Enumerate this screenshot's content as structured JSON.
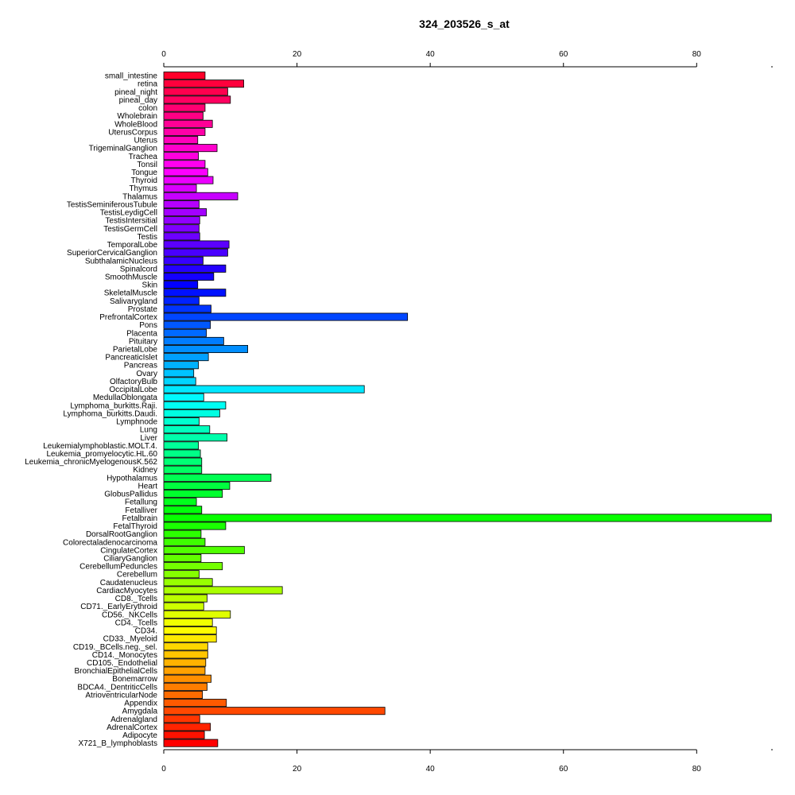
{
  "chart_data": {
    "type": "bar",
    "orientation": "horizontal",
    "title": "324_203526_s_at",
    "xlabel": "",
    "ylabel": "",
    "xlim": [
      0,
      91.3
    ],
    "xticks": [
      0,
      20,
      40,
      60,
      80
    ],
    "grid": false,
    "legend": "none",
    "categories": [
      "small_intestine",
      "retina",
      "pineal_night",
      "pineal_day",
      "colon",
      "Wholebrain",
      "WholeBlood",
      "UterusCorpus",
      "Uterus",
      "TrigeminalGanglion",
      "Trachea",
      "Tonsil",
      "Tongue",
      "Thyroid",
      "Thymus",
      "Thalamus",
      "TestisSeminiferousTubule",
      "TestisLeydigCell",
      "TestisIntersitial",
      "TestisGermCell",
      "Testis",
      "TemporalLobe",
      "SuperiorCervicalGanglion",
      "SubthalamicNucleus",
      "Spinalcord",
      "SmoothMuscle",
      "Skin",
      "SkeletalMuscle",
      "Salivarygland",
      "Prostate",
      "PrefrontalCortex",
      "Pons",
      "Placenta",
      "Pituitary",
      "ParietalLobe",
      "PancreaticIslet",
      "Pancreas",
      "Ovary",
      "OlfactoryBulb",
      "OccipitalLobe",
      "MedullaOblongata",
      "Lymphoma_burkitts.Raji.",
      "Lymphoma_burkitts.Daudi.",
      "Lymphnode",
      "Lung",
      "Liver",
      "Leukemialymphoblastic.MOLT.4.",
      "Leukemia_promyelocytic.HL.60",
      "Leukemia_chronicMyelogenousK.562",
      "Kidney",
      "Hypothalamus",
      "Heart",
      "GlobusPallidus",
      "Fetallung",
      "Fetalliver",
      "Fetalbrain",
      "FetalThyroid",
      "DorsalRootGanglion",
      "Colorectaladenocarcinoma",
      "CingulateCortex",
      "CiliaryGanglion",
      "CerebellumPeduncles",
      "Cerebellum",
      "Caudatenucleus",
      "CardiacMyocytes",
      "CD8._Tcells",
      "CD71._EarlyErythroid",
      "CD56._NKCells",
      "CD4._Tcells",
      "CD34.",
      "CD33._Myeloid",
      "CD19._BCells.neg._sel.",
      "CD14._Monocytes",
      "CD105._Endothelial",
      "BronchialEpithelialCells",
      "Bonemarrow",
      "BDCA4._DentriticCells",
      "AtrioventricularNode",
      "Appendix",
      "Amygdala",
      "Adrenalgland",
      "AdrenalCortex",
      "Adipocyte",
      "X721_B_lymphoblasts"
    ],
    "values": [
      6.2,
      12.0,
      9.6,
      10.0,
      6.2,
      5.9,
      7.3,
      6.2,
      5.1,
      8.0,
      5.2,
      6.2,
      6.6,
      7.4,
      4.9,
      11.1,
      5.3,
      6.4,
      5.4,
      5.3,
      5.4,
      9.8,
      9.6,
      5.9,
      9.3,
      7.5,
      5.1,
      9.3,
      5.3,
      7.1,
      36.6,
      7.0,
      6.4,
      9.0,
      12.6,
      6.7,
      5.2,
      4.5,
      4.8,
      30.1,
      6.0,
      9.3,
      8.4,
      5.3,
      6.9,
      9.5,
      5.2,
      5.5,
      5.7,
      5.7,
      16.1,
      9.9,
      8.8,
      4.9,
      5.7,
      91.2,
      9.3,
      5.6,
      6.2,
      12.1,
      5.6,
      8.8,
      5.3,
      7.3,
      17.8,
      6.5,
      6.0,
      10.0,
      7.3,
      7.9,
      7.9,
      6.6,
      6.6,
      6.3,
      6.2,
      7.1,
      6.5,
      5.8,
      9.4,
      33.2,
      5.4,
      7.0,
      6.1,
      8.1
    ]
  }
}
